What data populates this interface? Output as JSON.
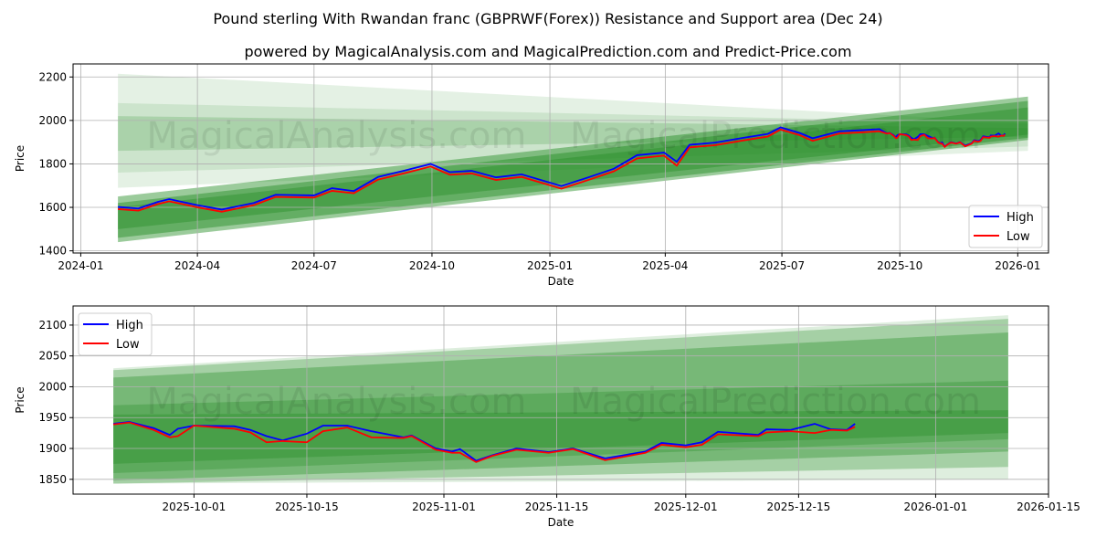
{
  "title": "Pound sterling With Rwandan franc (GBPRWF(Forex)) Resistance and Support area (Dec 24)",
  "subtitle": "powered by MagicalAnalysis.com and MagicalPrediction.com and Predict-Price.com",
  "watermarks": [
    "MagicalAnalysis.com",
    "MagicalPrediction.com"
  ],
  "colors": {
    "high": "#0000ff",
    "low": "#ff0000",
    "band": "#228b22"
  },
  "chart_data": [
    {
      "type": "line",
      "xlabel": "Date",
      "ylabel": "Price",
      "ylim": [
        1390,
        2260
      ],
      "xlim": [
        "2023-12-26",
        "2026-01-25"
      ],
      "yticks": [
        1400,
        1600,
        1800,
        2000,
        2200
      ],
      "xticks": [
        "2024-01",
        "2024-04",
        "2024-07",
        "2024-10",
        "2025-01",
        "2025-04",
        "2025-07",
        "2025-10",
        "2026-01"
      ],
      "xtick_dates": [
        "2024-01-01",
        "2024-04-01",
        "2024-07-01",
        "2024-10-01",
        "2025-01-01",
        "2025-04-01",
        "2025-07-01",
        "2025-10-01",
        "2026-01-01"
      ],
      "legend": {
        "position": "lower-right",
        "entries": [
          "High",
          "Low"
        ]
      },
      "grid": true,
      "band_range": [
        "2024-01-30",
        "2026-01-09"
      ],
      "bands": [
        {
          "start": [
            1690,
            2215
          ],
          "end": [
            1860,
            1990
          ],
          "opacity": 0.12
        },
        {
          "start": [
            1760,
            2080
          ],
          "end": [
            1880,
            1985
          ],
          "opacity": 0.12
        },
        {
          "start": [
            1860,
            2020
          ],
          "end": [
            1925,
            1965
          ],
          "opacity": 0.2
        },
        {
          "start": [
            1440,
            1650
          ],
          "end": [
            1910,
            2110
          ],
          "opacity": 0.45
        },
        {
          "start": [
            1460,
            1620
          ],
          "end": [
            1920,
            2090
          ],
          "opacity": 0.45
        },
        {
          "start": [
            1500,
            1600
          ],
          "end": [
            1935,
            2060
          ],
          "opacity": 0.4
        }
      ],
      "series": [
        {
          "name": "High",
          "points": [
            [
              "2024-01-30",
              1602
            ],
            [
              "2024-02-15",
              1595
            ],
            [
              "2024-03-01",
              1625
            ],
            [
              "2024-03-10",
              1638
            ],
            [
              "2024-04-01",
              1610
            ],
            [
              "2024-04-20",
              1590
            ],
            [
              "2024-05-15",
              1620
            ],
            [
              "2024-06-01",
              1658
            ],
            [
              "2024-07-01",
              1655
            ],
            [
              "2024-07-15",
              1688
            ],
            [
              "2024-08-01",
              1675
            ],
            [
              "2024-08-20",
              1740
            ],
            [
              "2024-09-10",
              1770
            ],
            [
              "2024-09-30",
              1800
            ],
            [
              "2024-10-15",
              1762
            ],
            [
              "2024-11-01",
              1768
            ],
            [
              "2024-11-20",
              1738
            ],
            [
              "2024-12-10",
              1752
            ],
            [
              "2025-01-10",
              1698
            ],
            [
              "2025-01-31",
              1738
            ],
            [
              "2025-02-20",
              1778
            ],
            [
              "2025-03-10",
              1840
            ],
            [
              "2025-03-31",
              1852
            ],
            [
              "2025-04-10",
              1810
            ],
            [
              "2025-04-20",
              1888
            ],
            [
              "2025-05-10",
              1898
            ],
            [
              "2025-06-01",
              1920
            ],
            [
              "2025-06-20",
              1938
            ],
            [
              "2025-06-30",
              1968
            ],
            [
              "2025-07-15",
              1942
            ],
            [
              "2025-07-25",
              1918
            ],
            [
              "2025-08-15",
              1950
            ],
            [
              "2025-09-01",
              1955
            ],
            [
              "2025-09-15",
              1960
            ],
            [
              "2025-09-21",
              1940
            ],
            [
              "2025-09-23",
              1943
            ],
            [
              "2025-09-26",
              1933
            ],
            [
              "2025-09-28",
              1922
            ],
            [
              "2025-09-29",
              1932
            ],
            [
              "2025-10-01",
              1937
            ],
            [
              "2025-10-06",
              1936
            ],
            [
              "2025-10-08",
              1930
            ],
            [
              "2025-10-10",
              1920
            ],
            [
              "2025-10-12",
              1913
            ],
            [
              "2025-10-15",
              1924
            ],
            [
              "2025-10-17",
              1937
            ],
            [
              "2025-10-20",
              1937
            ],
            [
              "2025-10-23",
              1928
            ],
            [
              "2025-10-27",
              1918
            ],
            [
              "2025-10-28",
              1921
            ],
            [
              "2025-10-31",
              1900
            ],
            [
              "2025-11-02",
              1895
            ],
            [
              "2025-11-03",
              1899
            ],
            [
              "2025-11-05",
              1880
            ],
            [
              "2025-11-07",
              1889
            ],
            [
              "2025-11-10",
              1900
            ],
            [
              "2025-11-14",
              1894
            ],
            [
              "2025-11-17",
              1900
            ],
            [
              "2025-11-21",
              1884
            ],
            [
              "2025-11-26",
              1895
            ],
            [
              "2025-11-28",
              1909
            ],
            [
              "2025-12-01",
              1905
            ],
            [
              "2025-12-03",
              1910
            ],
            [
              "2025-12-05",
              1927
            ],
            [
              "2025-12-10",
              1922
            ],
            [
              "2025-12-11",
              1931
            ],
            [
              "2025-12-14",
              1930
            ],
            [
              "2025-12-17",
              1940
            ],
            [
              "2025-12-19",
              1931
            ],
            [
              "2025-12-21",
              1930
            ],
            [
              "2025-12-22",
              1940
            ]
          ]
        },
        {
          "name": "Low",
          "points": [
            [
              "2024-01-30",
              1592
            ],
            [
              "2024-02-15",
              1585
            ],
            [
              "2024-03-01",
              1615
            ],
            [
              "2024-03-10",
              1628
            ],
            [
              "2024-04-01",
              1600
            ],
            [
              "2024-04-20",
              1580
            ],
            [
              "2024-05-15",
              1610
            ],
            [
              "2024-06-01",
              1648
            ],
            [
              "2024-07-01",
              1645
            ],
            [
              "2024-07-15",
              1676
            ],
            [
              "2024-08-01",
              1665
            ],
            [
              "2024-08-20",
              1728
            ],
            [
              "2024-09-10",
              1758
            ],
            [
              "2024-09-30",
              1788
            ],
            [
              "2024-10-15",
              1750
            ],
            [
              "2024-11-01",
              1756
            ],
            [
              "2024-11-20",
              1726
            ],
            [
              "2024-12-10",
              1740
            ],
            [
              "2025-01-10",
              1686
            ],
            [
              "2025-01-31",
              1726
            ],
            [
              "2025-02-20",
              1766
            ],
            [
              "2025-03-10",
              1825
            ],
            [
              "2025-03-31",
              1838
            ],
            [
              "2025-04-10",
              1792
            ],
            [
              "2025-04-20",
              1876
            ],
            [
              "2025-05-10",
              1886
            ],
            [
              "2025-06-01",
              1908
            ],
            [
              "2025-06-20",
              1926
            ],
            [
              "2025-06-30",
              1958
            ],
            [
              "2025-07-15",
              1932
            ],
            [
              "2025-07-25",
              1906
            ],
            [
              "2025-08-15",
              1940
            ],
            [
              "2025-09-01",
              1945
            ],
            [
              "2025-09-15",
              1950
            ],
            [
              "2025-09-21",
              1939
            ],
            [
              "2025-09-23",
              1942
            ],
            [
              "2025-09-26",
              1930
            ],
            [
              "2025-09-28",
              1918
            ],
            [
              "2025-09-29",
              1920
            ],
            [
              "2025-10-01",
              1937
            ],
            [
              "2025-10-06",
              1932
            ],
            [
              "2025-10-08",
              1926
            ],
            [
              "2025-10-10",
              1910
            ],
            [
              "2025-10-12",
              1912
            ],
            [
              "2025-10-15",
              1910
            ],
            [
              "2025-10-17",
              1928
            ],
            [
              "2025-10-20",
              1934
            ],
            [
              "2025-10-23",
              1918
            ],
            [
              "2025-10-27",
              1917
            ],
            [
              "2025-10-28",
              1920
            ],
            [
              "2025-10-31",
              1898
            ],
            [
              "2025-11-02",
              1893
            ],
            [
              "2025-11-03",
              1893
            ],
            [
              "2025-11-05",
              1878
            ],
            [
              "2025-11-07",
              1888
            ],
            [
              "2025-11-10",
              1898
            ],
            [
              "2025-11-14",
              1893
            ],
            [
              "2025-11-17",
              1899
            ],
            [
              "2025-11-21",
              1881
            ],
            [
              "2025-11-26",
              1893
            ],
            [
              "2025-11-28",
              1906
            ],
            [
              "2025-12-01",
              1902
            ],
            [
              "2025-12-03",
              1906
            ],
            [
              "2025-12-05",
              1923
            ],
            [
              "2025-12-10",
              1920
            ],
            [
              "2025-12-11",
              1926
            ],
            [
              "2025-12-14",
              1928
            ],
            [
              "2025-12-17",
              1925
            ],
            [
              "2025-12-19",
              1930
            ],
            [
              "2025-12-21",
              1929
            ],
            [
              "2025-12-22",
              1935
            ]
          ]
        }
      ]
    },
    {
      "type": "line",
      "xlabel": "Date",
      "ylabel": "Price",
      "ylim": [
        1826,
        2131
      ],
      "xlim": [
        "2025-09-16",
        "2026-01-15"
      ],
      "yticks": [
        1850,
        1900,
        1950,
        2000,
        2050,
        2100
      ],
      "xticks": [
        "2025-10-01",
        "2025-10-15",
        "2025-11-01",
        "2025-11-15",
        "2025-12-01",
        "2025-12-15",
        "2026-01-01",
        "2026-01-15"
      ],
      "legend": {
        "position": "upper-left",
        "entries": [
          "High",
          "Low"
        ]
      },
      "grid": true,
      "band_range": [
        "2025-09-21",
        "2026-01-10"
      ],
      "bands": [
        {
          "start": [
            1843,
            2030
          ],
          "end": [
            1850,
            2116
          ],
          "opacity": 0.15
        },
        {
          "start": [
            1843,
            2027
          ],
          "end": [
            1870,
            2110
          ],
          "opacity": 0.3
        },
        {
          "start": [
            1848,
            2015
          ],
          "end": [
            1895,
            2088
          ],
          "opacity": 0.35
        },
        {
          "start": [
            1860,
            1970
          ],
          "end": [
            1915,
            2010
          ],
          "opacity": 0.3
        },
        {
          "start": [
            1875,
            1955
          ],
          "end": [
            1925,
            1962
          ],
          "opacity": 0.35
        }
      ],
      "series_ref": "same as chart 0, from 2025-09-21"
    }
  ]
}
